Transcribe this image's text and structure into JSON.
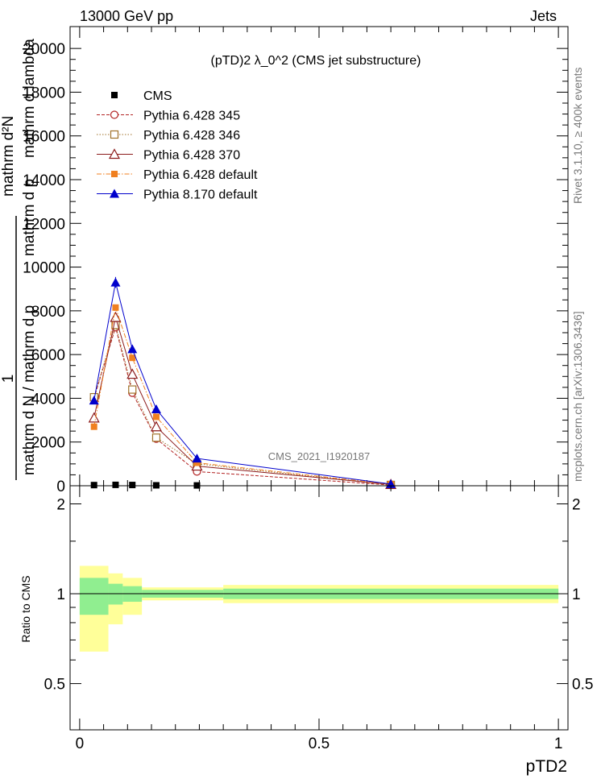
{
  "header": {
    "energy_label": "13000 GeV pp",
    "category_label": "Jets",
    "plot_title": "(pTD)2 λ_0^2 (CMS jet substructure)",
    "rivet_label": "Rivet 3.1.10, ≥ 400k events",
    "mcplots_label": "mcplots.cern.ch [arXiv:1306.3436]",
    "analysis_label": "CMS_2021_I1920187"
  },
  "chart_data": [
    {
      "type": "line",
      "panel": "main",
      "title": "(pTD)2 λ_0^2 (CMS jet substructure)",
      "ylabel": "1 / mathrm d N / mathrm d p_T  ·  mathrm d²N / mathrm d p_T mathrm d lambda",
      "ylabel_parts": [
        "1",
        "mathrm d N / mathrm d p",
        "mathrm d²N",
        "mathrm d p",
        "mathrm d lambda"
      ],
      "ylim": [
        0,
        21000
      ],
      "yticks": [
        0,
        2000,
        4000,
        6000,
        8000,
        10000,
        12000,
        14000,
        16000,
        18000,
        20000
      ],
      "ytick_labels": [
        "0",
        "2000",
        "4000",
        "6000",
        "8000",
        "10000",
        "12000",
        "14000",
        "16000",
        "18000",
        "20000"
      ],
      "xlim": [
        -0.02,
        1.02
      ],
      "x": [
        0.03,
        0.075,
        0.11,
        0.16,
        0.245,
        0.65
      ],
      "series": [
        {
          "name": "CMS",
          "color": "#000000",
          "marker": "square-filled",
          "values": [
            30,
            40,
            35,
            20,
            15,
            2
          ]
        },
        {
          "name": "Pythia 6.428 345",
          "color": "#b22222",
          "marker": "circle-open",
          "dash": "4,2",
          "values": [
            4000,
            7250,
            4250,
            2150,
            650,
            30
          ]
        },
        {
          "name": "Pythia 6.428 346",
          "color": "#a0722a",
          "marker": "square-open",
          "dash": "1.5,2",
          "values": [
            4050,
            7350,
            4400,
            2200,
            1000,
            40
          ]
        },
        {
          "name": "Pythia 6.428 370",
          "color": "#8b1a1a",
          "marker": "triangle-open",
          "dash": "",
          "values": [
            3100,
            7700,
            5100,
            2700,
            900,
            60
          ]
        },
        {
          "name": "Pythia 6.428 default",
          "color": "#f08020",
          "marker": "square-filled",
          "dash": "6,2,1.5,2",
          "values": [
            2700,
            8150,
            5850,
            3150,
            1050,
            70
          ]
        },
        {
          "name": "Pythia 8.170 default",
          "color": "#0000cc",
          "marker": "triangle-filled",
          "dash": "",
          "values": [
            3900,
            9300,
            6250,
            3500,
            1250,
            80
          ]
        }
      ]
    },
    {
      "type": "area",
      "panel": "ratio",
      "ylabel": "Ratio to CMS",
      "xlabel": "pTD2",
      "ylim": [
        0.35,
        2.3
      ],
      "yticks": [
        0.5,
        1,
        2
      ],
      "ytick_labels": [
        "0.5",
        "1",
        "2"
      ],
      "xticks": [
        0,
        0.5,
        1
      ],
      "xtick_labels": [
        "0",
        "0.5",
        "1"
      ],
      "bins": [
        {
          "x0": 0.0,
          "x1": 0.06,
          "stat_lo": 0.85,
          "stat_hi": 1.13,
          "tot_lo": 0.64,
          "tot_hi": 1.24
        },
        {
          "x0": 0.06,
          "x1": 0.09,
          "stat_lo": 0.92,
          "stat_hi": 1.08,
          "tot_lo": 0.79,
          "tot_hi": 1.17
        },
        {
          "x0": 0.09,
          "x1": 0.13,
          "stat_lo": 0.94,
          "stat_hi": 1.06,
          "tot_lo": 0.85,
          "tot_hi": 1.13
        },
        {
          "x0": 0.13,
          "x1": 0.3,
          "stat_lo": 0.97,
          "stat_hi": 1.03,
          "tot_lo": 0.95,
          "tot_hi": 1.05
        },
        {
          "x0": 0.3,
          "x1": 1.0,
          "stat_lo": 0.96,
          "stat_hi": 1.04,
          "tot_lo": 0.93,
          "tot_hi": 1.07
        }
      ],
      "colors": {
        "stat_band": "#90ee90",
        "total_band": "#ffff99"
      }
    }
  ]
}
